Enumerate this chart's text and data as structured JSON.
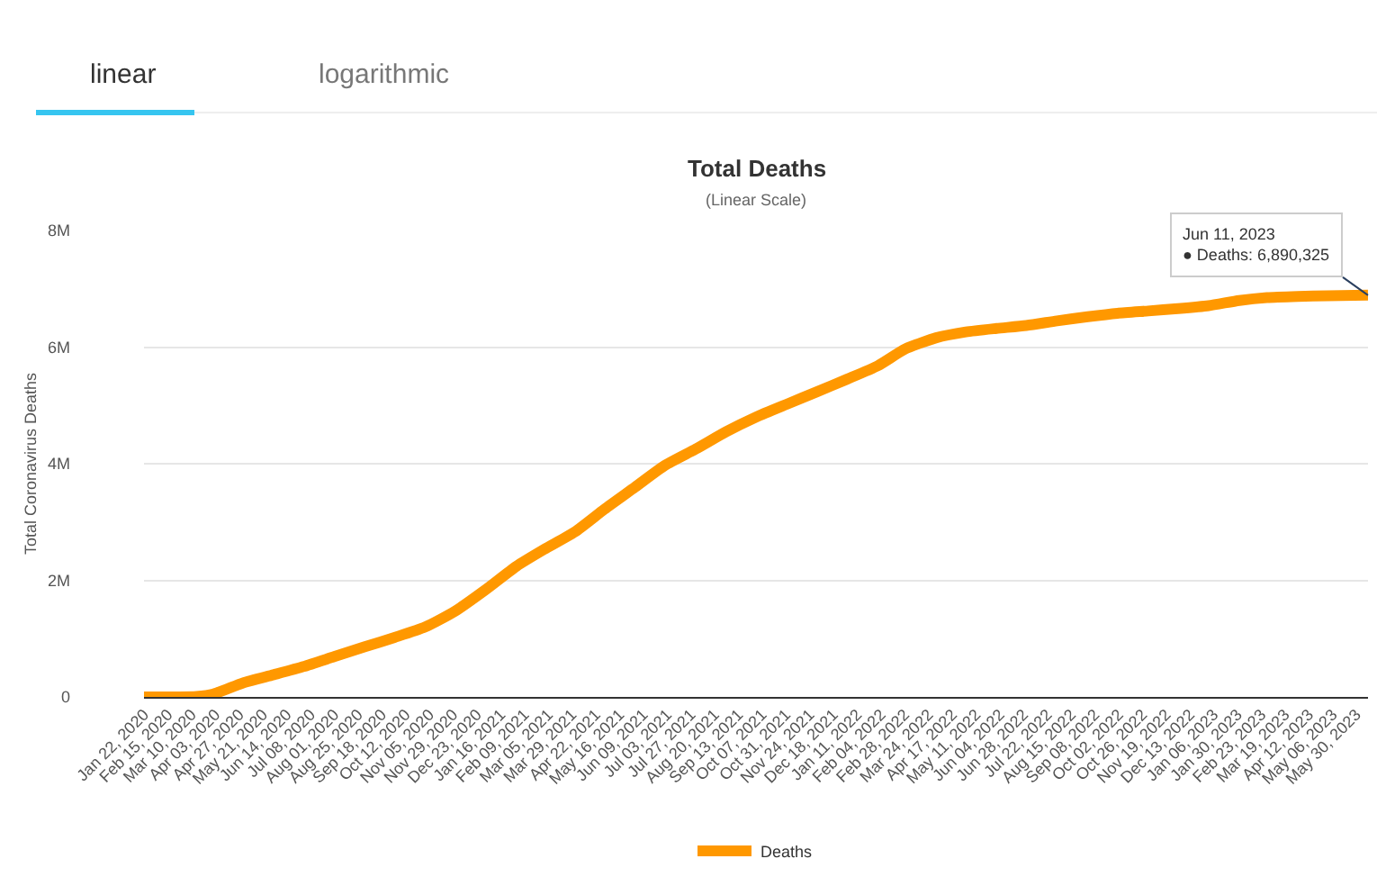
{
  "chart_data": {
    "type": "line",
    "title": "Total Deaths",
    "subtitle": "(Linear Scale)",
    "ylabel": "Total Coronavirus Deaths",
    "annotations": [
      "linear",
      "logarithmic",
      {
        "text": "Jun 11, 2023\n● Deaths: 6,890,325",
        "x": "2023-06-11",
        "y": 6890325
      }
    ],
    "x": [
      "2020-01-22",
      "2020-03-15",
      "2020-04-01",
      "2020-05-01",
      "2020-06-01",
      "2020-07-01",
      "2020-08-01",
      "2020-09-01",
      "2020-10-01",
      "2020-11-01",
      "2020-12-01",
      "2021-01-01",
      "2021-02-01",
      "2021-03-01",
      "2021-04-01",
      "2021-05-01",
      "2021-06-01",
      "2021-07-01",
      "2021-08-01",
      "2021-09-01",
      "2021-10-01",
      "2021-11-01",
      "2021-12-01",
      "2022-01-01",
      "2022-02-01",
      "2022-03-01",
      "2022-04-01",
      "2022-05-01",
      "2022-06-01",
      "2022-07-01",
      "2022-08-01",
      "2022-09-01",
      "2022-10-01",
      "2022-11-01",
      "2022-12-01",
      "2023-01-01",
      "2023-02-01",
      "2023-03-01",
      "2023-04-01",
      "2023-05-01",
      "2023-06-11"
    ],
    "series": [
      {
        "name": "Deaths",
        "color": "#ff9800",
        "values": [
          0,
          10000,
          50000,
          240000,
          380000,
          520000,
          690000,
          860000,
          1020000,
          1200000,
          1470000,
          1840000,
          2240000,
          2530000,
          2830000,
          3220000,
          3600000,
          3970000,
          4250000,
          4550000,
          4800000,
          5020000,
          5230000,
          5450000,
          5680000,
          5970000,
          6160000,
          6260000,
          6320000,
          6370000,
          6450000,
          6520000,
          6580000,
          6620000,
          6660000,
          6710000,
          6800000,
          6850000,
          6870000,
          6880000,
          6890325
        ]
      }
    ],
    "xlim": [
      "2020-01-22",
      "2023-06-11"
    ],
    "xticks": [
      {
        "value": "2020-01-22",
        "label": "Jan 22, 2020"
      },
      {
        "value": "2020-02-15",
        "label": "Feb 15, 2020"
      },
      {
        "value": "2020-03-10",
        "label": "Mar 10, 2020"
      },
      {
        "value": "2020-04-03",
        "label": "Apr 03, 2020"
      },
      {
        "value": "2020-04-27",
        "label": "Apr 27, 2020"
      },
      {
        "value": "2020-05-21",
        "label": "May 21, 2020"
      },
      {
        "value": "2020-06-14",
        "label": "Jun 14, 2020"
      },
      {
        "value": "2020-07-08",
        "label": "Jul 08, 2020"
      },
      {
        "value": "2020-08-01",
        "label": "Aug 01, 2020"
      },
      {
        "value": "2020-08-25",
        "label": "Aug 25, 2020"
      },
      {
        "value": "2020-09-18",
        "label": "Sep 18, 2020"
      },
      {
        "value": "2020-10-12",
        "label": "Oct 12, 2020"
      },
      {
        "value": "2020-11-05",
        "label": "Nov 05, 2020"
      },
      {
        "value": "2020-11-29",
        "label": "Nov 29, 2020"
      },
      {
        "value": "2020-12-23",
        "label": "Dec 23, 2020"
      },
      {
        "value": "2021-01-16",
        "label": "Jan 16, 2021"
      },
      {
        "value": "2021-02-09",
        "label": "Feb 09, 2021"
      },
      {
        "value": "2021-03-05",
        "label": "Mar 05, 2021"
      },
      {
        "value": "2021-03-29",
        "label": "Mar 29, 2021"
      },
      {
        "value": "2021-04-22",
        "label": "Apr 22, 2021"
      },
      {
        "value": "2021-05-16",
        "label": "May 16, 2021"
      },
      {
        "value": "2021-06-09",
        "label": "Jun 09, 2021"
      },
      {
        "value": "2021-07-03",
        "label": "Jul 03, 2021"
      },
      {
        "value": "2021-07-27",
        "label": "Jul 27, 2021"
      },
      {
        "value": "2021-08-20",
        "label": "Aug 20, 2021"
      },
      {
        "value": "2021-09-13",
        "label": "Sep 13, 2021"
      },
      {
        "value": "2021-10-07",
        "label": "Oct 07, 2021"
      },
      {
        "value": "2021-10-31",
        "label": "Oct 31, 2021"
      },
      {
        "value": "2021-11-24",
        "label": "Nov 24, 2021"
      },
      {
        "value": "2021-12-18",
        "label": "Dec 18, 2021"
      },
      {
        "value": "2022-01-11",
        "label": "Jan 11, 2022"
      },
      {
        "value": "2022-02-04",
        "label": "Feb 04, 2022"
      },
      {
        "value": "2022-02-28",
        "label": "Feb 28, 2022"
      },
      {
        "value": "2022-03-24",
        "label": "Mar 24, 2022"
      },
      {
        "value": "2022-04-17",
        "label": "Apr 17, 2022"
      },
      {
        "value": "2022-05-11",
        "label": "May 11, 2022"
      },
      {
        "value": "2022-06-04",
        "label": "Jun 04, 2022"
      },
      {
        "value": "2022-06-28",
        "label": "Jun 28, 2022"
      },
      {
        "value": "2022-07-22",
        "label": "Jul 22, 2022"
      },
      {
        "value": "2022-08-15",
        "label": "Aug 15, 2022"
      },
      {
        "value": "2022-09-08",
        "label": "Sep 08, 2022"
      },
      {
        "value": "2022-10-02",
        "label": "Oct 02, 2022"
      },
      {
        "value": "2022-10-26",
        "label": "Oct 26, 2022"
      },
      {
        "value": "2022-11-19",
        "label": "Nov 19, 2022"
      },
      {
        "value": "2022-12-13",
        "label": "Dec 13, 2022"
      },
      {
        "value": "2023-01-06",
        "label": "Jan 06, 2023"
      },
      {
        "value": "2023-01-30",
        "label": "Jan 30, 2023"
      },
      {
        "value": "2023-02-23",
        "label": "Feb 23, 2023"
      },
      {
        "value": "2023-03-19",
        "label": "Mar 19, 2023"
      },
      {
        "value": "2023-04-12",
        "label": "Apr 12, 2023"
      },
      {
        "value": "2023-05-06",
        "label": "May 06, 2023"
      },
      {
        "value": "2023-05-30",
        "label": "May 30, 2023"
      }
    ],
    "ylim": [
      0,
      8000000
    ],
    "yticks": [
      0,
      {
        "value": 2000000,
        "label": "2M"
      },
      {
        "value": 4000000,
        "label": "4M"
      },
      {
        "value": 6000000,
        "label": "6M"
      },
      {
        "value": 8000000,
        "label": "8M"
      }
    ],
    "grid": "y",
    "legend": "bottom",
    "marker": "none",
    "line_style": "solid"
  }
}
